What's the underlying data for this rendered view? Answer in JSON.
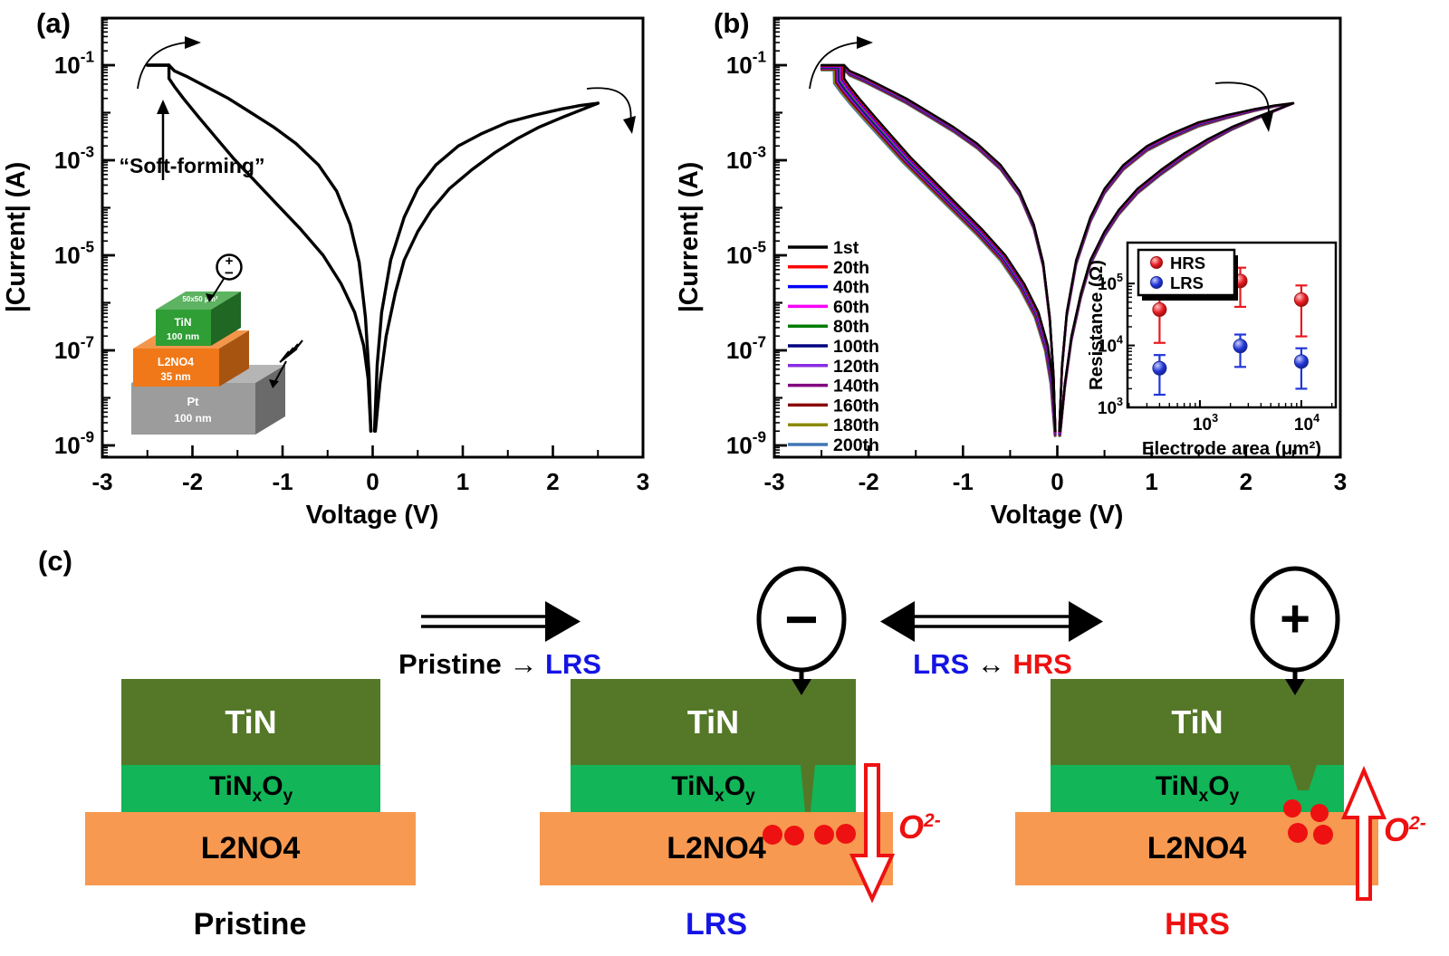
{
  "figure": {
    "background": "#ffffff"
  },
  "iv_base_curve": {
    "neg_sweep": [
      [
        -0.02,
        -8.7
      ],
      [
        -0.05,
        -7.6
      ],
      [
        -0.1,
        -6.9
      ],
      [
        -0.2,
        -6.2
      ],
      [
        -0.35,
        -5.6
      ],
      [
        -0.55,
        -5.0
      ],
      [
        -0.8,
        -4.45
      ],
      [
        -1.05,
        -3.95
      ],
      [
        -1.3,
        -3.45
      ],
      [
        -1.55,
        -2.95
      ],
      [
        -1.75,
        -2.5
      ],
      [
        -1.95,
        -2.05
      ],
      [
        -2.1,
        -1.7
      ],
      [
        -2.2,
        -1.45
      ],
      [
        -2.26,
        -1.28
      ],
      [
        -2.26,
        -1.0
      ]
    ],
    "neg_plateau": [
      [
        -2.26,
        -1.0
      ],
      [
        -2.5,
        -1.0
      ]
    ],
    "neg_return": [
      [
        -2.5,
        -1.0
      ],
      [
        -2.26,
        -1.0
      ],
      [
        -2.2,
        -1.12
      ],
      [
        -2.05,
        -1.25
      ],
      [
        -1.85,
        -1.45
      ],
      [
        -1.6,
        -1.7
      ],
      [
        -1.35,
        -2.0
      ],
      [
        -1.1,
        -2.3
      ],
      [
        -0.85,
        -2.65
      ],
      [
        -0.6,
        -3.1
      ],
      [
        -0.4,
        -3.65
      ],
      [
        -0.25,
        -4.35
      ],
      [
        -0.15,
        -5.15
      ],
      [
        -0.08,
        -6.3
      ],
      [
        -0.04,
        -7.5
      ],
      [
        -0.02,
        -8.7
      ]
    ],
    "pos_set": [
      [
        0.02,
        -8.7
      ],
      [
        0.05,
        -7.3
      ],
      [
        0.1,
        -6.2
      ],
      [
        0.2,
        -5.1
      ],
      [
        0.35,
        -4.2
      ],
      [
        0.5,
        -3.6
      ],
      [
        0.7,
        -3.1
      ],
      [
        0.95,
        -2.7
      ],
      [
        1.2,
        -2.45
      ],
      [
        1.5,
        -2.2
      ],
      [
        1.8,
        -2.05
      ],
      [
        2.1,
        -1.92
      ],
      [
        2.3,
        -1.85
      ],
      [
        2.5,
        -1.8
      ]
    ],
    "pos_reset": [
      [
        2.5,
        -1.8
      ],
      [
        2.3,
        -1.95
      ],
      [
        2.1,
        -2.1
      ],
      [
        1.85,
        -2.3
      ],
      [
        1.6,
        -2.55
      ],
      [
        1.35,
        -2.85
      ],
      [
        1.1,
        -3.2
      ],
      [
        0.85,
        -3.6
      ],
      [
        0.65,
        -4.05
      ],
      [
        0.5,
        -4.5
      ],
      [
        0.35,
        -5.1
      ],
      [
        0.25,
        -5.8
      ],
      [
        0.15,
        -6.7
      ],
      [
        0.08,
        -7.7
      ],
      [
        0.03,
        -8.7
      ]
    ]
  },
  "chart_data": [
    {
      "id": "panel_a",
      "type": "line",
      "panel_label": "(a)",
      "xlabel": "Voltage (V)",
      "ylabel": "|Current| (A)",
      "xlim": [
        -3,
        3
      ],
      "x_major_ticks": [
        -3,
        -2,
        -1,
        0,
        1,
        2,
        3
      ],
      "y_scale": "log",
      "ylim_log10": [
        -9.25,
        0
      ],
      "y_labeled_exponents": [
        -1,
        -3,
        -5,
        -7,
        -9
      ],
      "annotation": "“Soft-forming”",
      "series": [
        {
          "name": "forming-sweep",
          "color": "#000000"
        }
      ]
    },
    {
      "id": "panel_b",
      "type": "line",
      "panel_label": "(b)",
      "xlabel": "Voltage (V)",
      "ylabel": "|Current| (A)",
      "xlim": [
        -3,
        3
      ],
      "x_major_ticks": [
        -3,
        -2,
        -1,
        0,
        1,
        2,
        3
      ],
      "y_scale": "log",
      "ylim_log10": [
        -9.25,
        0
      ],
      "y_labeled_exponents": [
        -1,
        -3,
        -5,
        -7,
        -9
      ],
      "series": [
        {
          "name": "1st",
          "color": "#000000"
        },
        {
          "name": "20th",
          "color": "#fe0000"
        },
        {
          "name": "40th",
          "color": "#0000f5"
        },
        {
          "name": "60th",
          "color": "#f800f8"
        },
        {
          "name": "80th",
          "color": "#007c00"
        },
        {
          "name": "100th",
          "color": "#000080"
        },
        {
          "name": "120th",
          "color": "#8a2be2"
        },
        {
          "name": "140th",
          "color": "#800080"
        },
        {
          "name": "160th",
          "color": "#8b0000"
        },
        {
          "name": "180th",
          "color": "#8a8a00"
        },
        {
          "name": "200th",
          "color": "#4076b4"
        }
      ],
      "inset": {
        "type": "scatter",
        "xlabel": "Electrode area (μm²)",
        "ylabel": "Resistance (Ω)",
        "x_tick_exponents": [
          3,
          4
        ],
        "y_tick_exponents": [
          3,
          4,
          5
        ],
        "series": [
          {
            "name": "HRS",
            "color": "#e8191f",
            "points": [
              {
                "x": 400,
                "y": 38000,
                "ylo": 11000,
                "yhi": 68000
              },
              {
                "x": 2500,
                "y": 110000,
                "ylo": 42000,
                "yhi": 180000
              },
              {
                "x": 10000,
                "y": 55000,
                "ylo": 14000,
                "yhi": 93000
              }
            ]
          },
          {
            "name": "LRS",
            "color": "#2136d9",
            "points": [
              {
                "x": 400,
                "y": 4300,
                "ylo": 1600,
                "yhi": 7000
              },
              {
                "x": 2500,
                "y": 9800,
                "ylo": 4500,
                "yhi": 15000
              },
              {
                "x": 10000,
                "y": 5500,
                "ylo": 2000,
                "yhi": 9000
              }
            ]
          }
        ]
      }
    }
  ],
  "panel_a_inset_device": {
    "area_label": "50x50 μm²",
    "polarity_plus": "+",
    "polarity_minus": "−",
    "layers": [
      {
        "name": "TiN",
        "thickness": "100 nm",
        "color": "#2f9e35"
      },
      {
        "name": "L2NO4",
        "thickness": "35 nm",
        "color": "#f07818"
      },
      {
        "name": "Pt",
        "thickness": "100 nm",
        "color": "#9c9c9c"
      }
    ]
  },
  "panel_c": {
    "label": "(c)",
    "transition1": {
      "from": "Pristine",
      "arrow": " → ",
      "to": "LRS",
      "from_color": "#000000",
      "to_color": "#1414e6"
    },
    "transition2": {
      "from": "LRS",
      "arrow": " ↔ ",
      "to": "HRS",
      "from_color": "#1414e6",
      "to_color": "#ee1111"
    },
    "electrode_minus": "−",
    "electrode_plus": "+",
    "layers": {
      "top": {
        "label": "TiN",
        "color": "#557828",
        "text_color": "#ffffff"
      },
      "middle": {
        "parts": [
          "TiN",
          "x",
          "O",
          "y"
        ],
        "color": "#12b558",
        "text_color": "#000000"
      },
      "bottom": {
        "label": "L2NO4",
        "color": "#f79950",
        "text_color": "#000000"
      }
    },
    "states": [
      {
        "label": "Pristine",
        "color": "#000000"
      },
      {
        "label": "LRS",
        "color": "#1414e6"
      },
      {
        "label": "HRS",
        "color": "#ee1111"
      }
    ],
    "ion_label": {
      "base": "O",
      "sup": "2-",
      "color": "#ee1111"
    },
    "ion_color": "#ee1111"
  }
}
